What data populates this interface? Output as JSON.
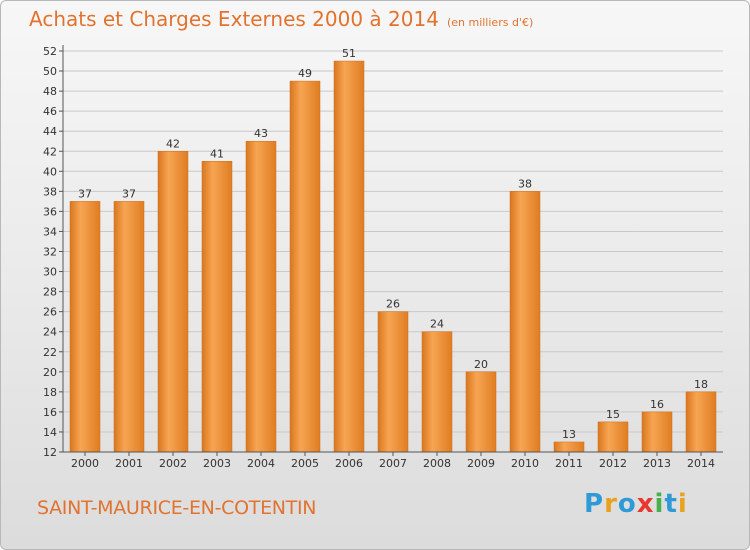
{
  "header": {
    "title": "Achats et Charges Externes 2000 à 2014",
    "unit": "(en milliers d'€)"
  },
  "footer": {
    "city": "SAINT-MAURICE-EN-COTENTIN"
  },
  "logo": {
    "text": "Proxiti",
    "colors": [
      "#2e9ad6",
      "#e8a21f",
      "#2e9ad6",
      "#e8372f",
      "#46b04a",
      "#2e9ad6",
      "#e8a21f"
    ]
  },
  "chart_data": {
    "type": "bar",
    "categories": [
      "2000",
      "2001",
      "2002",
      "2003",
      "2004",
      "2005",
      "2006",
      "2007",
      "2008",
      "2009",
      "2010",
      "2011",
      "2012",
      "2013",
      "2014"
    ],
    "values": [
      37,
      37,
      42,
      41,
      43,
      49,
      51,
      26,
      24,
      20,
      38,
      13,
      15,
      16,
      18
    ],
    "ylim": [
      12,
      52
    ],
    "yticks": [
      12,
      14,
      16,
      18,
      20,
      22,
      24,
      26,
      28,
      30,
      32,
      34,
      36,
      38,
      40,
      42,
      44,
      46,
      48,
      50,
      52
    ],
    "grid": true,
    "bar_color": "#f0912f"
  }
}
